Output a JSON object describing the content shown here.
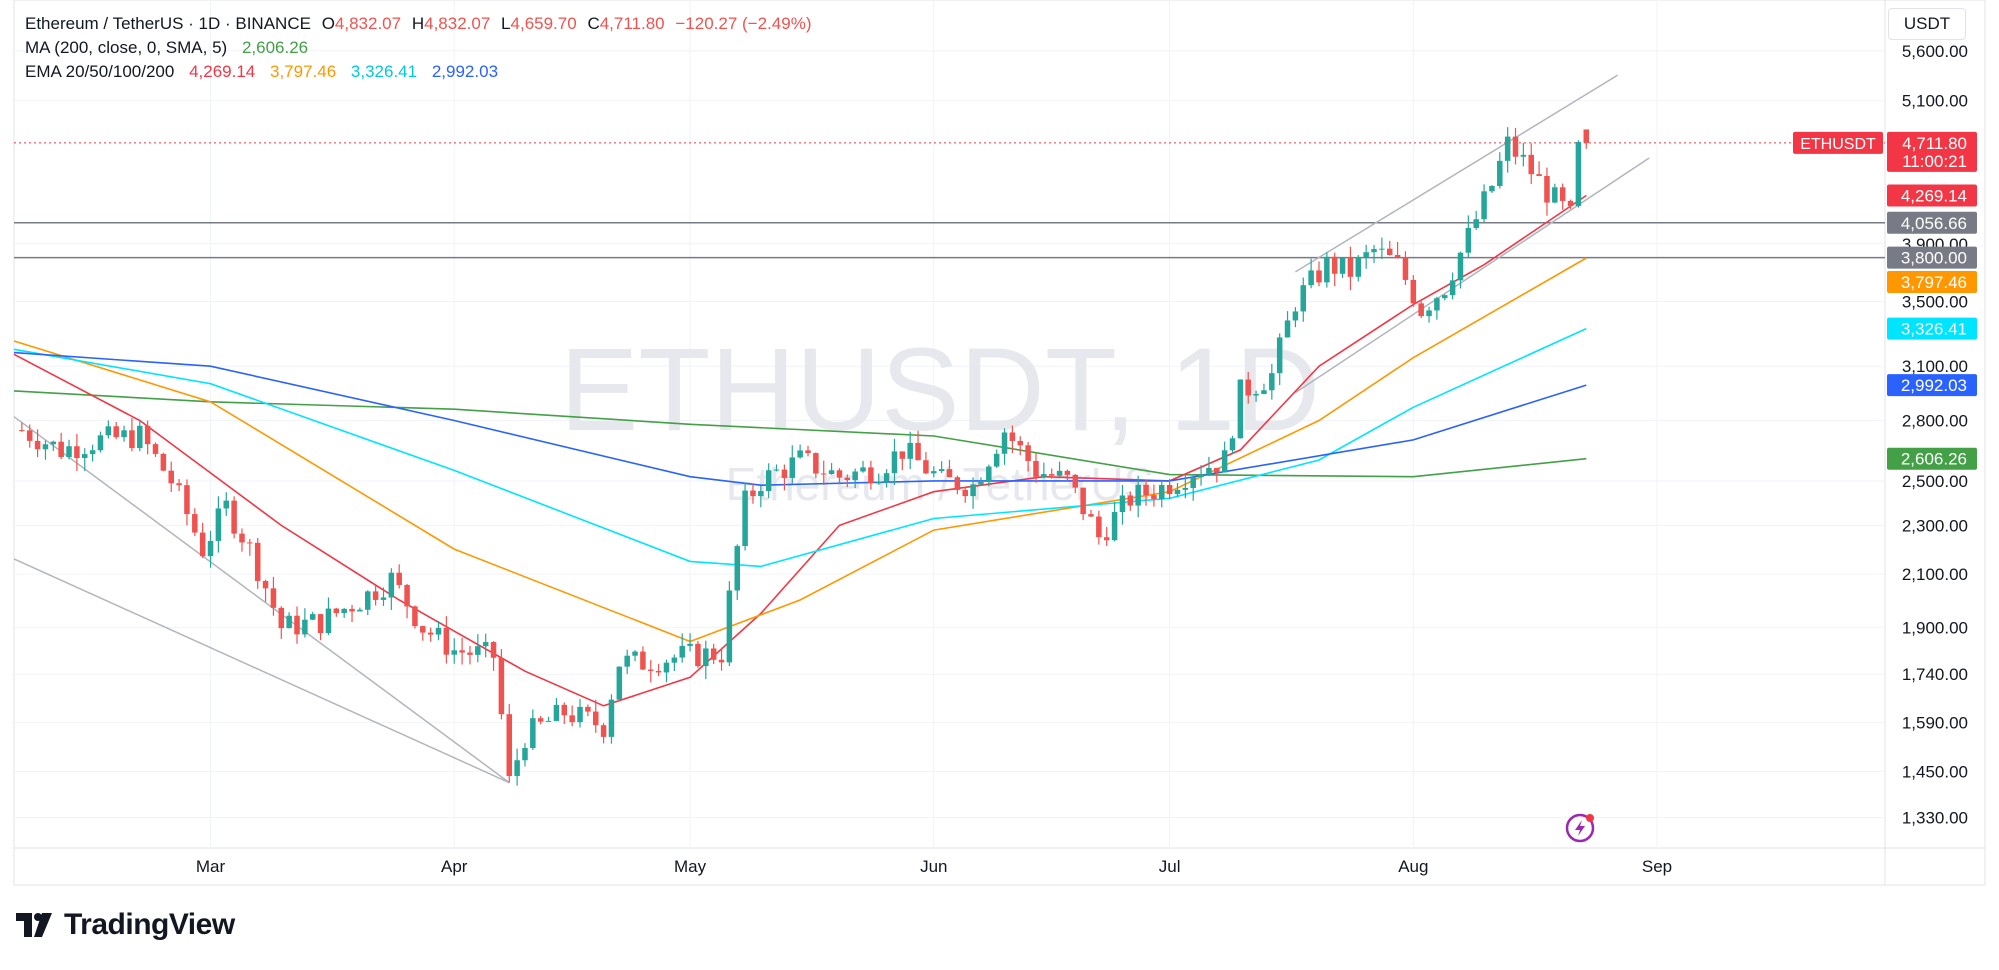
{
  "header": {
    "symbol_title": "Ethereum / TetherUS · 1D · BINANCE",
    "ohlc": [
      {
        "key": "O",
        "value": "4,832.07"
      },
      {
        "key": "H",
        "value": "4,832.07"
      },
      {
        "key": "L",
        "value": "4,659.70"
      },
      {
        "key": "C",
        "value": "4,711.80"
      }
    ],
    "change": "−120.27 (−2.49%)",
    "ma_label": "MA (200, close, 0, SMA, 5)",
    "ma_value": "2,606.26",
    "ema_label": "EMA 20/50/100/200",
    "ema_values": [
      "4,269.14",
      "3,797.46",
      "3,326.41",
      "2,992.03"
    ]
  },
  "currency_button": "USDT",
  "watermark": {
    "main": "ETHUSDT, 1D",
    "sub": "Ethereum / TetherUS"
  },
  "brand": "TradingView",
  "colors": {
    "up": "#26a69a",
    "down": "#ef5350",
    "ma200": "#43a047",
    "ema20": "#f23645",
    "ema50": "#ff9800",
    "ema100": "#00e5ff",
    "ema200": "#2962ff",
    "level": "#787b86",
    "channel": "#b2b5be"
  },
  "chart_data": {
    "type": "candlestick",
    "symbol": "ETHUSDT",
    "timeframe": "1D",
    "y_scale": "log",
    "ylim": [
      1280,
      6000
    ],
    "y_ticks": [
      "5,600.00",
      "5,100.00",
      "3,900.00",
      "3,500.00",
      "3,100.00",
      "2,800.00",
      "2,500.00",
      "2,300.00",
      "2,100.00",
      "1,900.00",
      "1,740.00",
      "1,590.00",
      "1,450.00",
      "1,330.00"
    ],
    "x_range": [
      "2025-02-04",
      "2025-09-30"
    ],
    "x_ticks": [
      {
        "label": "Mar",
        "date": "2025-03-01"
      },
      {
        "label": "Apr",
        "date": "2025-04-01"
      },
      {
        "label": "May",
        "date": "2025-05-01"
      },
      {
        "label": "Jun",
        "date": "2025-06-01"
      },
      {
        "label": "Jul",
        "date": "2025-07-01"
      },
      {
        "label": "Aug",
        "date": "2025-08-01"
      },
      {
        "label": "Sep",
        "date": "2025-09-01"
      }
    ],
    "price_points": [
      [
        "2025-02-05",
        2750
      ],
      [
        "2025-02-10",
        2650
      ],
      [
        "2025-02-15",
        2700
      ],
      [
        "2025-02-20",
        2720
      ],
      [
        "2025-02-24",
        2500
      ],
      [
        "2025-02-28",
        2200
      ],
      [
        "2025-03-03",
        2380
      ],
      [
        "2025-03-06",
        2200
      ],
      [
        "2025-03-10",
        1900
      ],
      [
        "2025-03-15",
        1920
      ],
      [
        "2025-03-20",
        2000
      ],
      [
        "2025-03-24",
        2080
      ],
      [
        "2025-03-28",
        1900
      ],
      [
        "2025-04-01",
        1820
      ],
      [
        "2025-04-06",
        1800
      ],
      [
        "2025-04-08",
        1420
      ],
      [
        "2025-04-10",
        1550
      ],
      [
        "2025-04-15",
        1620
      ],
      [
        "2025-04-20",
        1580
      ],
      [
        "2025-04-22",
        1780
      ],
      [
        "2025-04-25",
        1780
      ],
      [
        "2025-04-30",
        1800
      ],
      [
        "2025-05-05",
        1810
      ],
      [
        "2025-05-08",
        2400
      ],
      [
        "2025-05-10",
        2500
      ],
      [
        "2025-05-15",
        2600
      ],
      [
        "2025-05-20",
        2520
      ],
      [
        "2025-05-25",
        2560
      ],
      [
        "2025-05-28",
        2650
      ],
      [
        "2025-06-02",
        2500
      ],
      [
        "2025-06-06",
        2480
      ],
      [
        "2025-06-10",
        2750
      ],
      [
        "2025-06-14",
        2550
      ],
      [
        "2025-06-18",
        2500
      ],
      [
        "2025-06-22",
        2250
      ],
      [
        "2025-06-26",
        2420
      ],
      [
        "2025-06-30",
        2470
      ],
      [
        "2025-07-04",
        2550
      ],
      [
        "2025-07-08",
        2600
      ],
      [
        "2025-07-10",
        2950
      ],
      [
        "2025-07-14",
        3050
      ],
      [
        "2025-07-17",
        3500
      ],
      [
        "2025-07-21",
        3750
      ],
      [
        "2025-07-24",
        3700
      ],
      [
        "2025-07-27",
        3850
      ],
      [
        "2025-07-30",
        3750
      ],
      [
        "2025-08-02",
        3450
      ],
      [
        "2025-08-05",
        3600
      ],
      [
        "2025-08-08",
        3950
      ],
      [
        "2025-08-11",
        4350
      ],
      [
        "2025-08-13",
        4700
      ],
      [
        "2025-08-15",
        4550
      ],
      [
        "2025-08-18",
        4300
      ],
      [
        "2025-08-21",
        4100
      ],
      [
        "2025-08-22",
        4650
      ],
      [
        "2025-08-23",
        4711.8
      ]
    ],
    "series": [
      {
        "name": "MA (200, close, 0, SMA, 5)",
        "last": 2606.26,
        "points": [
          [
            "2025-02-04",
            2960
          ],
          [
            "2025-03-01",
            2900
          ],
          [
            "2025-04-01",
            2860
          ],
          [
            "2025-05-01",
            2780
          ],
          [
            "2025-06-01",
            2720
          ],
          [
            "2025-07-01",
            2530
          ],
          [
            "2025-08-01",
            2520
          ],
          [
            "2025-08-23",
            2606.26
          ]
        ]
      },
      {
        "name": "EMA 20",
        "last": 4269.14,
        "points": [
          [
            "2025-02-04",
            3170
          ],
          [
            "2025-02-20",
            2800
          ],
          [
            "2025-03-10",
            2300
          ],
          [
            "2025-03-25",
            2000
          ],
          [
            "2025-04-10",
            1750
          ],
          [
            "2025-04-20",
            1640
          ],
          [
            "2025-05-01",
            1730
          ],
          [
            "2025-05-10",
            1950
          ],
          [
            "2025-05-20",
            2300
          ],
          [
            "2025-06-01",
            2450
          ],
          [
            "2025-06-15",
            2520
          ],
          [
            "2025-07-01",
            2500
          ],
          [
            "2025-07-10",
            2650
          ],
          [
            "2025-07-20",
            3100
          ],
          [
            "2025-08-01",
            3480
          ],
          [
            "2025-08-10",
            3750
          ],
          [
            "2025-08-23",
            4269.14
          ]
        ]
      },
      {
        "name": "EMA 50",
        "last": 3797.46,
        "points": [
          [
            "2025-02-04",
            3250
          ],
          [
            "2025-03-01",
            2900
          ],
          [
            "2025-04-01",
            2200
          ],
          [
            "2025-05-01",
            1850
          ],
          [
            "2025-05-15",
            2000
          ],
          [
            "2025-06-01",
            2280
          ],
          [
            "2025-07-01",
            2450
          ],
          [
            "2025-07-20",
            2800
          ],
          [
            "2025-08-01",
            3150
          ],
          [
            "2025-08-23",
            3797.46
          ]
        ]
      },
      {
        "name": "EMA 100",
        "last": 3326.41,
        "points": [
          [
            "2025-02-04",
            3200
          ],
          [
            "2025-03-01",
            3000
          ],
          [
            "2025-04-01",
            2550
          ],
          [
            "2025-05-01",
            2150
          ],
          [
            "2025-05-10",
            2130
          ],
          [
            "2025-06-01",
            2330
          ],
          [
            "2025-07-01",
            2420
          ],
          [
            "2025-07-20",
            2600
          ],
          [
            "2025-08-01",
            2870
          ],
          [
            "2025-08-23",
            3326.41
          ]
        ]
      },
      {
        "name": "EMA 200",
        "last": 2992.03,
        "points": [
          [
            "2025-02-04",
            3180
          ],
          [
            "2025-03-01",
            3100
          ],
          [
            "2025-04-01",
            2800
          ],
          [
            "2025-05-01",
            2520
          ],
          [
            "2025-05-10",
            2480
          ],
          [
            "2025-06-01",
            2500
          ],
          [
            "2025-07-01",
            2500
          ],
          [
            "2025-08-01",
            2700
          ],
          [
            "2025-08-23",
            2992.03
          ]
        ]
      }
    ],
    "horizontal_levels": [
      4056.66,
      3800.0
    ],
    "channels": [
      {
        "from": [
          "2025-02-04",
          2820
        ],
        "to": [
          "2025-04-08",
          1420
        ]
      },
      {
        "from": [
          "2025-02-04",
          2160
        ],
        "to": [
          "2025-04-08",
          1420
        ]
      },
      {
        "from": [
          "2025-07-17",
          3700
        ],
        "to": [
          "2025-08-27",
          5350
        ]
      },
      {
        "from": [
          "2025-07-17",
          2950
        ],
        "to": [
          "2025-08-31",
          4580
        ]
      }
    ],
    "price_labels": [
      {
        "text": "4,711.80",
        "sub": "11:00:21",
        "price": 4711.8,
        "tag": "ETHUSDT",
        "color": "#f23645"
      },
      {
        "text": "4,269.14",
        "price": 4269.14,
        "color": "#f23645"
      },
      {
        "text": "4,056.66",
        "price": 4056.66,
        "color": "#787b86"
      },
      {
        "text": "3,800.00",
        "price": 3800.0,
        "color": "#787b86"
      },
      {
        "text": "3,797.46",
        "price": 3797.46,
        "color": "#ff9800"
      },
      {
        "text": "3,326.41",
        "price": 3326.41,
        "color": "#00e5ff"
      },
      {
        "text": "2,992.03",
        "price": 2992.03,
        "color": "#2962ff"
      },
      {
        "text": "2,606.26",
        "price": 2606.26,
        "color": "#43a047"
      }
    ]
  }
}
